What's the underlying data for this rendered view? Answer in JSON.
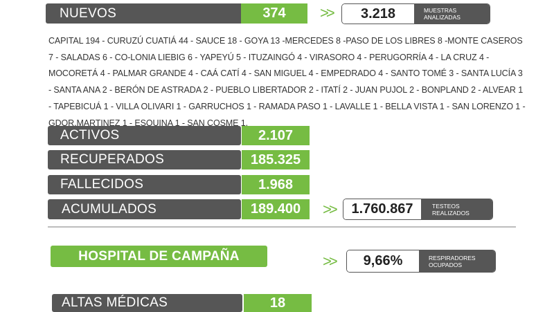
{
  "nuevos": {
    "label": "NUEVOS",
    "value": "374",
    "samples_value": "3.218",
    "samples_caption": "MUESTRAS ANALIZADAS"
  },
  "chevrons": ">>",
  "localities_text": "CAPITAL 194 - CURUZÚ CUATIÁ 44 - SAUCE 18 - GOYA 13 -MERCEDES 8 -PASO DE LOS LIBRES 8 -MONTE CASEROS 7 - SALADAS 6 - CO-LONIA LIEBIG 6 - YAPEYÚ 5 - ITUZAINGÓ 4 - VIRASORO 4 - PERUGORRÍA 4 - LA CRUZ 4 - MOCORETÁ 4 - PALMAR GRANDE 4 - CAÁ CATÍ 4 - SAN MIGUEL 4 - EMPEDRADO 4 - SANTO TOMÉ 3 - SANTA LUCÍA 3 - SANTA ANA 2 - BERÓN DE ASTRADA 2 - PUEBLO LIBERTADOR 2 - ITATÍ 2 - JUAN PUJOL 2 - BONPLAND 2 - ALVEAR 1 - TAPEBICUÁ 1 - VILLA OLIVARI 1 - GARRUCHOS 1 - RAMADA PASO 1 - LAVALLE 1 - BELLA VISTA 1 - SAN LORENZO 1 - GDOR.MARTINEZ 1 - ESQUINA 1 - SAN COSME 1.",
  "stats": [
    {
      "label": "ACTIVOS",
      "value": "2.107"
    },
    {
      "label": "RECUPERADOS",
      "value": "185.325"
    },
    {
      "label": "FALLECIDOS",
      "value": "1.968"
    },
    {
      "label": "ACUMULADOS",
      "value": "189.400"
    }
  ],
  "testeos": {
    "value": "1.760.867",
    "caption": "TESTEOS REALIZADOS"
  },
  "hospital": {
    "title": "HOSPITAL DE CAMPAÑA",
    "respiradores_value": "9,66%",
    "respiradores_caption": "RESPIRADORES OCUPADOS"
  },
  "altas": {
    "label": "ALTAS MÉDICAS",
    "value": "18"
  },
  "colors": {
    "green": "#76bc43",
    "grey": "#565656"
  }
}
